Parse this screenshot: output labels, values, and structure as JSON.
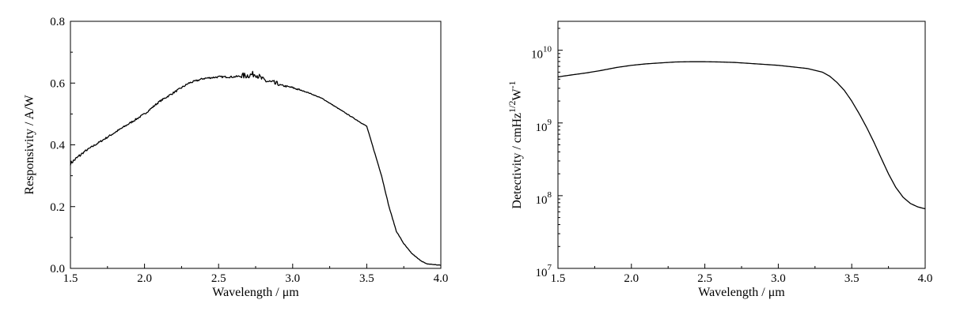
{
  "chart_data": [
    {
      "type": "line",
      "title": "",
      "xlabel": "Wavelength / μm",
      "ylabel": "Responsivity / A/W",
      "xlim": [
        1.5,
        4.0
      ],
      "ylim": [
        0.0,
        0.8
      ],
      "yscale": "linear",
      "grid": false,
      "legend": "none",
      "x_ticks": [
        "1.5",
        "2.0",
        "2.5",
        "3.0",
        "3.5",
        "4.0"
      ],
      "y_ticks": [
        "0.0",
        "0.2",
        "0.4",
        "0.6",
        "0.8"
      ],
      "series": [
        {
          "noisy": true,
          "x": [
            1.5,
            1.6,
            1.7,
            1.8,
            1.9,
            2.0,
            2.1,
            2.2,
            2.3,
            2.4,
            2.5,
            2.6,
            2.7,
            2.75,
            2.8,
            2.9,
            3.0,
            3.1,
            3.2,
            3.3,
            3.4,
            3.5,
            3.55,
            3.6,
            3.65,
            3.7,
            3.75,
            3.8,
            3.85,
            3.9,
            4.0
          ],
          "y": [
            0.34,
            0.38,
            0.41,
            0.44,
            0.47,
            0.5,
            0.54,
            0.57,
            0.6,
            0.615,
            0.62,
            0.62,
            0.625,
            0.63,
            0.61,
            0.595,
            0.585,
            0.57,
            0.55,
            0.52,
            0.49,
            0.46,
            0.38,
            0.3,
            0.2,
            0.12,
            0.08,
            0.05,
            0.03,
            0.015,
            0.01
          ]
        }
      ]
    },
    {
      "type": "line",
      "title": "",
      "xlabel": "Wavelength / μm",
      "ylabel_main": "Detectivity / cmHz",
      "ylabel_sup1": "1/2",
      "ylabel_mid": "W",
      "ylabel_sup2": "-1",
      "xlim": [
        1.5,
        4.0
      ],
      "ylim": [
        10000000.0,
        25000000000.0
      ],
      "yscale": "log",
      "grid": false,
      "legend": "none",
      "x_ticks": [
        "1.5",
        "2.0",
        "2.5",
        "3.0",
        "3.5",
        "4.0"
      ],
      "y_ticks": [
        {
          "value": 10000000.0,
          "base": "10",
          "exp": "7"
        },
        {
          "value": 100000000.0,
          "base": "10",
          "exp": "8"
        },
        {
          "value": 1000000000.0,
          "base": "10",
          "exp": "9"
        },
        {
          "value": 10000000000.0,
          "base": "10",
          "exp": "10"
        }
      ],
      "series": [
        {
          "noisy": false,
          "x": [
            1.5,
            1.6,
            1.7,
            1.8,
            1.9,
            2.0,
            2.1,
            2.2,
            2.3,
            2.4,
            2.5,
            2.6,
            2.7,
            2.8,
            2.9,
            3.0,
            3.1,
            3.2,
            3.3,
            3.35,
            3.4,
            3.45,
            3.5,
            3.55,
            3.6,
            3.65,
            3.7,
            3.75,
            3.8,
            3.85,
            3.9,
            3.95,
            4.0
          ],
          "y": [
            4300000000.0,
            4600000000.0,
            4900000000.0,
            5300000000.0,
            5800000000.0,
            6200000000.0,
            6500000000.0,
            6700000000.0,
            6900000000.0,
            6950000000.0,
            6950000000.0,
            6900000000.0,
            6800000000.0,
            6600000000.0,
            6400000000.0,
            6200000000.0,
            5900000000.0,
            5600000000.0,
            5000000000.0,
            4400000000.0,
            3600000000.0,
            2800000000.0,
            2000000000.0,
            1350000000.0,
            880000000.0,
            550000000.0,
            330000000.0,
            200000000.0,
            130000000.0,
            95000000.0,
            78000000.0,
            70000000.0,
            66000000.0
          ]
        }
      ]
    }
  ]
}
